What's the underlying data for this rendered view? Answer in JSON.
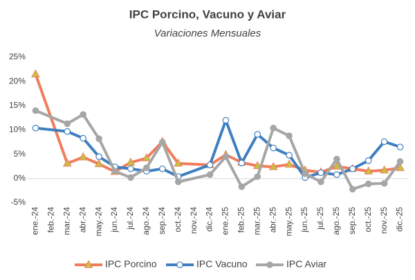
{
  "chart_data": {
    "type": "line",
    "title": "IPC Porcino, Vacuno y Aviar",
    "subtitle": "Variaciones Mensuales",
    "categories": [
      "ene.-24",
      "feb.-24",
      "mar.-24",
      "abr.-24",
      "may.-24",
      "jun.-24",
      "jul.-24",
      "ago.-24",
      "sep.-24",
      "oct.-24",
      "nov.-24",
      "dic.-24",
      "ene.-25",
      "feb.-25",
      "mar.-25",
      "abr.-25",
      "may.-25",
      "jun.-25",
      "jul.-25",
      "ago.-25",
      "sep.-25",
      "oct.-25",
      "nov.-25",
      "dic.-25"
    ],
    "series": [
      {
        "name": "IPC Porcino",
        "color": "#f07c5c",
        "marker": "triangle",
        "marker_color": "#c8c040",
        "values": [
          21.5,
          null,
          3.1,
          4.4,
          3.0,
          1.4,
          3.3,
          4.2,
          7.6,
          3.1,
          null,
          2.8,
          4.9,
          3.3,
          2.6,
          2.4,
          2.9,
          1.7,
          1.3,
          2.5,
          2.0,
          1.5,
          1.7,
          2.2
        ]
      },
      {
        "name": "IPC Vacuno",
        "color": "#3f7fbf",
        "marker": "circle",
        "marker_color": "#ffffff",
        "values": [
          10.4,
          null,
          9.7,
          8.3,
          4.5,
          2.4,
          2.0,
          1.5,
          2.0,
          0.4,
          null,
          2.8,
          12.0,
          3.2,
          9.1,
          6.3,
          4.8,
          0.2,
          1.2,
          0.8,
          2.0,
          3.7,
          7.6,
          6.5
        ]
      },
      {
        "name": "IPC Aviar",
        "color": "#a6a6a6",
        "marker": "circle",
        "marker_color": "#a6a6a6",
        "values": [
          14.0,
          null,
          11.3,
          13.2,
          8.2,
          1.5,
          0.2,
          2.2,
          7.5,
          -0.7,
          null,
          0.8,
          4.5,
          -1.7,
          0.4,
          10.4,
          8.8,
          1.0,
          -0.7,
          4.0,
          -2.2,
          -1.1,
          -1.0,
          3.5
        ]
      }
    ],
    "ylim": [
      -5,
      25
    ],
    "yticks": [
      {
        "value": -5,
        "label": "-5%"
      },
      {
        "value": 0,
        "label": "0%"
      },
      {
        "value": 5,
        "label": "5%"
      },
      {
        "value": 10,
        "label": "10%"
      },
      {
        "value": 15,
        "label": "15%"
      },
      {
        "value": 20,
        "label": "20%"
      },
      {
        "value": 25,
        "label": "25%"
      }
    ],
    "grid": false,
    "connect_nulls": true,
    "legend": "bottom"
  }
}
